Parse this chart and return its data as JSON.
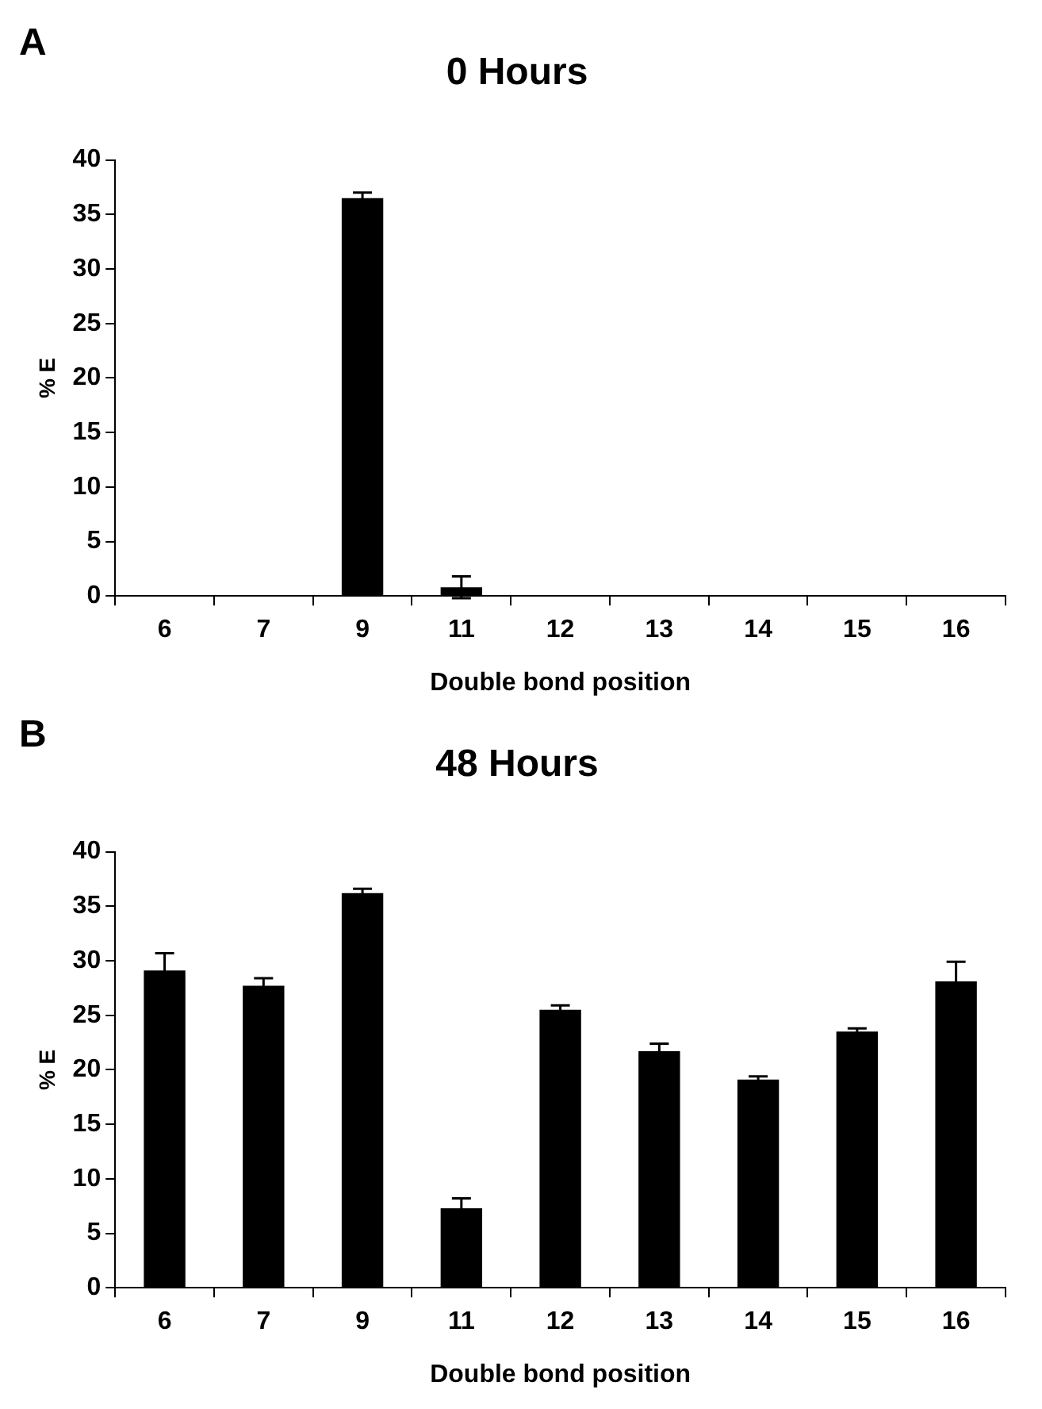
{
  "chart_data": [
    {
      "type": "bar",
      "title": "0 Hours",
      "xlabel": "Double bond position",
      "ylabel": "% E",
      "annotations": [
        "A"
      ],
      "categories": [
        "6",
        "7",
        "9",
        "11",
        "12",
        "13",
        "14",
        "15",
        "16"
      ],
      "values": [
        0,
        0,
        36.5,
        0.8,
        0,
        0,
        0,
        0,
        0
      ],
      "errors": [
        null,
        null,
        0.5,
        1.0,
        null,
        null,
        null,
        null,
        null
      ],
      "color": "#000000",
      "ylim": [
        0,
        40
      ],
      "yticks": [
        0,
        5,
        10,
        15,
        20,
        25,
        30,
        35,
        40
      ],
      "grid": false,
      "legend": false
    },
    {
      "type": "bar",
      "title": "48 Hours",
      "xlabel": "Double bond position",
      "ylabel": "% E",
      "annotations": [
        "B"
      ],
      "categories": [
        "6",
        "7",
        "9",
        "11",
        "12",
        "13",
        "14",
        "15",
        "16"
      ],
      "values": [
        29.1,
        27.7,
        36.2,
        7.3,
        25.5,
        21.7,
        19.1,
        23.5,
        28.1
      ],
      "errors": [
        1.6,
        0.7,
        0.4,
        0.9,
        0.4,
        0.7,
        0.3,
        0.3,
        1.8
      ],
      "color": "#000000",
      "ylim": [
        0,
        40
      ],
      "yticks": [
        0,
        5,
        10,
        15,
        20,
        25,
        30,
        35,
        40
      ],
      "grid": false,
      "legend": false
    }
  ]
}
